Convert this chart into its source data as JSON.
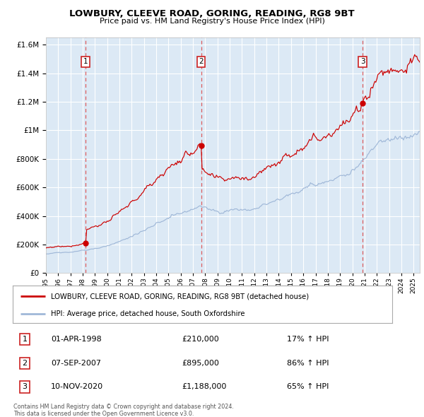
{
  "title": "LOWBURY, CLEEVE ROAD, GORING, READING, RG8 9BT",
  "subtitle": "Price paid vs. HM Land Registry's House Price Index (HPI)",
  "legend_line1": "LOWBURY, CLEEVE ROAD, GORING, READING, RG8 9BT (detached house)",
  "legend_line2": "HPI: Average price, detached house, South Oxfordshire",
  "sale1_date": "01-APR-1998",
  "sale1_price": 210000,
  "sale1_t": 1998.25,
  "sale1_pct": "17%",
  "sale2_date": "07-SEP-2007",
  "sale2_price": 895000,
  "sale2_t": 2007.667,
  "sale2_pct": "86%",
  "sale3_date": "10-NOV-2020",
  "sale3_price": 1188000,
  "sale3_t": 2020.833,
  "sale3_pct": "65%",
  "footer1": "Contains HM Land Registry data © Crown copyright and database right 2024.",
  "footer2": "This data is licensed under the Open Government Licence v3.0.",
  "hpi_color": "#a0b8d8",
  "price_color": "#cc0000",
  "plot_bg": "#dce9f5",
  "grid_color": "#ffffff",
  "vline1_color": "#cc3333",
  "vline2_color": "#cc3333",
  "vline3_color": "#cc3333",
  "ylim_max": 1650000,
  "xlim_start": 1995.0,
  "xlim_end": 2025.5,
  "yticks": [
    0,
    200000,
    400000,
    600000,
    800000,
    1000000,
    1200000,
    1400000,
    1600000
  ]
}
